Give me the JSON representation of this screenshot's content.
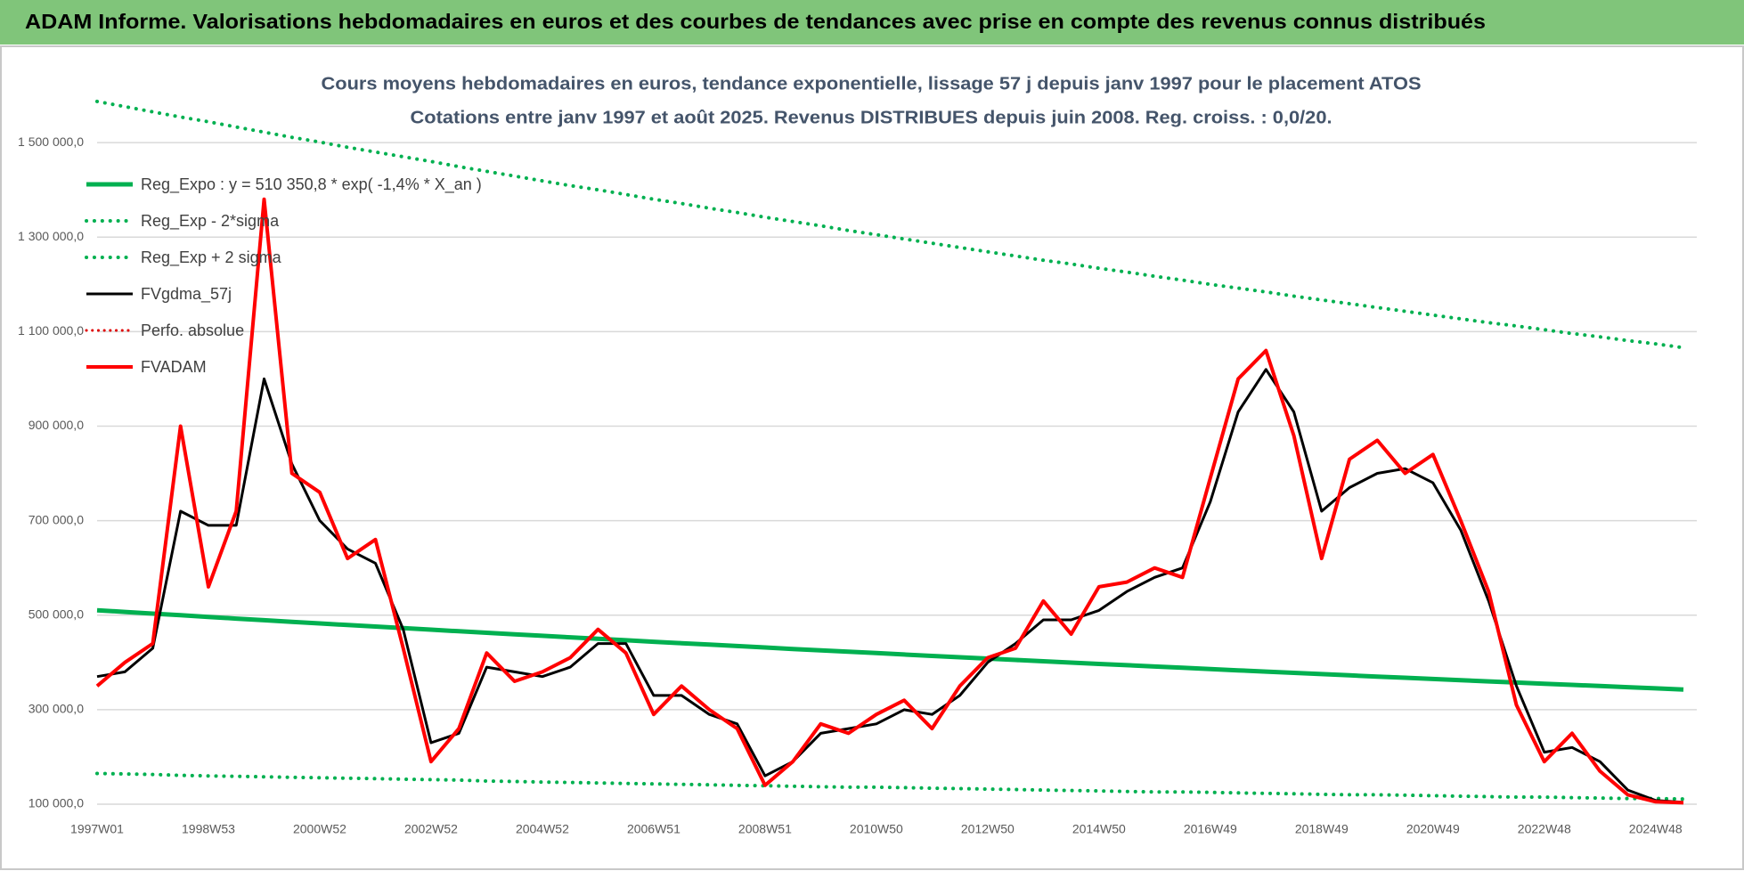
{
  "header": {
    "title": "ADAM Informe. Valorisations hebdomadaires en euros et des courbes de tendances avec prise en compte des revenus connus distribués"
  },
  "chart_data": {
    "type": "line",
    "title": "Cours moyens hebdomadaires en euros, tendance exponentielle, lissage 57 j depuis janv 1997 pour le placement ATOS",
    "subtitle": "Cotations entre janv 1997 et août 2025.  Revenus DISTRIBUES depuis juin 2008.  Reg. croiss. : 0,0/20.",
    "categories": [
      "1997W01",
      null,
      null,
      null,
      "1998W53",
      null,
      null,
      null,
      "2000W52",
      null,
      null,
      null,
      "2002W52",
      null,
      null,
      null,
      "2004W52",
      null,
      null,
      null,
      "2006W51",
      null,
      null,
      null,
      "2008W51",
      null,
      null,
      null,
      "2010W50",
      null,
      null,
      null,
      "2012W50",
      null,
      null,
      null,
      "2014W50",
      null,
      null,
      null,
      "2016W49",
      null,
      null,
      null,
      "2018W49",
      null,
      null,
      null,
      "2020W49",
      null,
      null,
      null,
      "2022W48",
      null,
      null,
      null,
      "2024W48",
      null
    ],
    "ylim": [
      100000,
      1600000
    ],
    "yticks": [
      {
        "value": 100000,
        "label": "100 000,0"
      },
      {
        "value": 300000,
        "label": "300 000,0"
      },
      {
        "value": 500000,
        "label": "500 000,0"
      },
      {
        "value": 700000,
        "label": "700 000,0"
      },
      {
        "value": 900000,
        "label": "900 000,0"
      },
      {
        "value": 1100000,
        "label": "1 100 000,0"
      },
      {
        "value": 1300000,
        "label": "1 300 000,0"
      },
      {
        "value": 1500000,
        "label": "1 500 000,0"
      }
    ],
    "grid": true,
    "legend": "upper left",
    "series": [
      {
        "name": "Reg_Expo : y = 510 350,8 * exp( -1,4% * X_an )",
        "color": "#00b050",
        "style": "solid",
        "width": 5,
        "values": [
          510400,
          506800,
          503300,
          499800,
          496300,
          492800,
          489400,
          486000,
          482600,
          479200,
          475900,
          472600,
          469300,
          466000,
          462800,
          459600,
          456400,
          453200,
          450000,
          446900,
          443800,
          440700,
          437600,
          434600,
          431600,
          428500,
          425600,
          422600,
          419700,
          416700,
          413800,
          411000,
          408100,
          405300,
          402400,
          399600,
          396800,
          394100,
          391300,
          388600,
          385900,
          383200,
          380600,
          377900,
          375300,
          372700,
          370100,
          367500,
          365000,
          362400,
          359900,
          357400,
          354900,
          352500,
          350000,
          347600,
          345200,
          342800
        ]
      },
      {
        "name": "Reg_Exp - 2*sigma",
        "color": "#00b050",
        "style": "dotted",
        "width": 4,
        "values": [
          165000,
          164000,
          163000,
          161000,
          160000,
          159000,
          158000,
          157000,
          156000,
          155000,
          154000,
          153000,
          152000,
          151000,
          149000,
          148000,
          147000,
          146000,
          145000,
          144000,
          143000,
          142000,
          141000,
          140000,
          139000,
          138000,
          137000,
          136000,
          136000,
          135000,
          134000,
          133000,
          132000,
          131000,
          130000,
          129000,
          128000,
          127000,
          126000,
          126000,
          125000,
          124000,
          123000,
          122000,
          121000,
          120000,
          120000,
          119000,
          118000,
          117000,
          116000,
          115000,
          115000,
          114000,
          113000,
          112000,
          112000,
          111000
        ]
      },
      {
        "name": "Reg_Exp + 2 sigma",
        "color": "#00b050",
        "style": "dotted",
        "width": 4,
        "values": [
          1587000,
          1576000,
          1565000,
          1554000,
          1544000,
          1533000,
          1522000,
          1511000,
          1501000,
          1490000,
          1480000,
          1470000,
          1460000,
          1449000,
          1439000,
          1429000,
          1419000,
          1409000,
          1400000,
          1390000,
          1380000,
          1371000,
          1361000,
          1352000,
          1342000,
          1333000,
          1324000,
          1314000,
          1305000,
          1296000,
          1287000,
          1278000,
          1269000,
          1260000,
          1251000,
          1243000,
          1234000,
          1226000,
          1217000,
          1209000,
          1200000,
          1192000,
          1184000,
          1175000,
          1167000,
          1159000,
          1151000,
          1143000,
          1135000,
          1127000,
          1119000,
          1112000,
          1104000,
          1096000,
          1089000,
          1081000,
          1074000,
          1066000
        ]
      },
      {
        "name": "FVgdma_57j",
        "color": "#000000",
        "style": "solid",
        "width": 3,
        "values": [
          370000,
          380000,
          430000,
          720000,
          690000,
          690000,
          1000000,
          820000,
          700000,
          640000,
          610000,
          470000,
          230000,
          250000,
          390000,
          380000,
          370000,
          390000,
          440000,
          440000,
          330000,
          330000,
          290000,
          270000,
          160000,
          190000,
          250000,
          260000,
          270000,
          300000,
          290000,
          330000,
          400000,
          440000,
          490000,
          490000,
          510000,
          550000,
          580000,
          600000,
          740000,
          930000,
          1020000,
          930000,
          720000,
          770000,
          800000,
          810000,
          780000,
          680000,
          530000,
          350000,
          210000,
          220000,
          190000,
          130000,
          108000,
          104000
        ]
      },
      {
        "name": "Perfo. absolue",
        "color": "#e00000",
        "style": "dotted",
        "width": 3,
        "values": [
          null,
          null,
          null,
          null,
          null,
          null,
          null,
          null,
          null,
          null,
          null,
          null,
          null,
          null,
          null,
          null,
          null,
          null,
          null,
          null,
          null,
          null,
          null,
          null,
          null,
          null,
          null,
          null,
          null,
          null,
          null,
          null,
          null,
          null,
          null,
          null,
          null,
          null,
          null,
          null,
          null,
          null,
          null,
          null,
          null,
          null,
          null,
          null,
          null,
          null,
          null,
          null,
          null,
          null,
          null,
          null,
          null,
          null
        ]
      },
      {
        "name": "FVADAM",
        "color": "#ff0000",
        "style": "solid",
        "width": 4,
        "values": [
          350000,
          400000,
          440000,
          900000,
          560000,
          720000,
          1380000,
          800000,
          760000,
          620000,
          660000,
          430000,
          190000,
          260000,
          420000,
          360000,
          380000,
          410000,
          470000,
          420000,
          290000,
          350000,
          300000,
          260000,
          140000,
          190000,
          270000,
          250000,
          290000,
          320000,
          260000,
          350000,
          410000,
          430000,
          530000,
          460000,
          560000,
          570000,
          600000,
          580000,
          790000,
          1000000,
          1060000,
          880000,
          620000,
          830000,
          870000,
          800000,
          840000,
          700000,
          550000,
          310000,
          190000,
          250000,
          170000,
          120000,
          105000,
          103000
        ]
      }
    ]
  }
}
